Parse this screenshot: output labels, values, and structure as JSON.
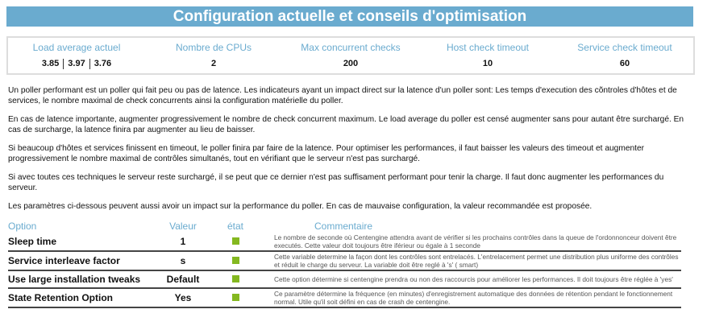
{
  "title": "Configuration actuelle et conseils d'optimisation",
  "stats": [
    {
      "label": "Load average actuel",
      "values": [
        "3.85",
        "3.97",
        "3.76"
      ]
    },
    {
      "label": "Nombre de CPUs",
      "value": "2"
    },
    {
      "label": "Max concurrent checks",
      "value": "200"
    },
    {
      "label": "Host check timeout",
      "value": "10"
    },
    {
      "label": "Service check timeout",
      "value": "60"
    }
  ],
  "paragraphs": [
    "Un poller performant est un poller qui fait peu ou pas de latence. Les indicateurs ayant un impact direct sur la latence d'un poller sont: Les temps d'execution des cõntroles d'hôtes et de services, le nombre maximal de check concurrents ainsi la configuration matérielle du poller.",
    "En cas de latence importante, augmenter progressivement le nombre de check concurrent maximum. Le load average du poller est censé augmenter sans pour autant être surchargé. En cas de surcharge, la latence finira par augmenter au lieu de baisser.",
    "Si beaucoup d'hôtes et services finissent en timeout, le poller finira par faire de la latence. Pour optimiser les performances, il faut baisser les valeurs des timeout et augmenter progressivement le nombre maximal de contrôles simultanés, tout en vérifiant que le serveur n'est pas surchargé.",
    "Si avec toutes ces techniques le serveur reste surchargé, il se peut que ce dernier n'est pas suffisament performant pour tenir la charge. Il faut donc augmenter les performances du serveur.",
    "Les paramètres ci-dessous peuvent aussi avoir un impact sur la performance du poller. En cas de mauvaise configuration, la valeur recommandée est proposée."
  ],
  "table": {
    "headers": [
      "Option",
      "Valeur",
      "état",
      "Commentaire"
    ],
    "status_color": "#84b820",
    "rows": [
      {
        "option": "Sleep time",
        "value": "1",
        "status": "ok",
        "comment": "Le nombre de seconde où Centengine attendra avant de vérifier si les prochains contrôles dans la queue de l'ordonnonceur doivent être executés. Cette valeur doit toujours être iférieur ou égale à 1 seconde"
      },
      {
        "option": "Service interleave factor",
        "value": "s",
        "status": "ok",
        "comment": "Cette variable determine la façon dont les contrôles sont entrelacés. L'entrelacement permet une distribution plus uniforme des contrôles et réduit le charge du serveur. La variable doit être reglé à 's' ( smart)"
      },
      {
        "option": "Use large installation tweaks",
        "value": "Default",
        "status": "ok",
        "comment": "Cette option détermine si centengine prendra ou non des raccourcis pour améliorer les performances. Il doit toujours être réglée à 'yes'"
      },
      {
        "option": "State Retention Option",
        "value": "Yes",
        "status": "ok",
        "comment": "Ce paramètre détermine la fréquence (en minutes) d'enregistrement automatique des données de rétention pendant le fonctionnement normal. Utile qu'il soit défini en cas de crash de centengine."
      }
    ]
  }
}
